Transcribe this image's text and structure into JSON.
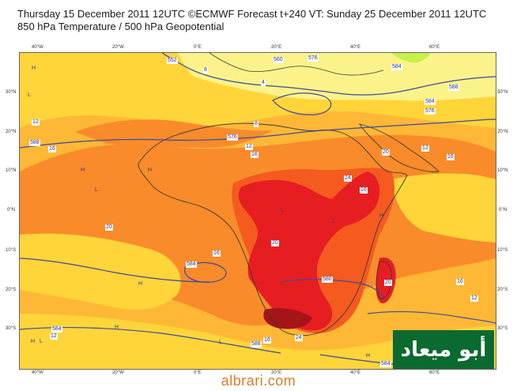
{
  "header": {
    "line1": "Thursday 15 December 2011 12UTC ©ECMWF Forecast t+240 VT: Sunday 25 December 2011 12UTC",
    "line2": "850 hPa Temperature / 500 hPa Geopotential"
  },
  "map": {
    "latitudes_left": [
      "30°N",
      "20°N",
      "10°N",
      "0°N",
      "10°S",
      "20°S",
      "30°S"
    ],
    "latitudes_right": [
      "30°N",
      "20°N",
      "10°N",
      "0°N",
      "10°S",
      "20°S",
      "30°S"
    ],
    "longitudes_top": [
      "40°W",
      "20°W",
      "0°E",
      "20°E",
      "40°E",
      "60°E"
    ],
    "longitudes_bottom": [
      "40°W",
      "20°W",
      "0°E",
      "20°E",
      "40°E",
      "60°E"
    ],
    "geopotential_labels": [
      "552",
      "560",
      "576",
      "584",
      "588",
      "584",
      "588",
      "576",
      "584",
      "580",
      "584",
      "588",
      "576",
      "584"
    ],
    "temperature_labels": [
      "8",
      "4",
      "8",
      "12",
      "16",
      "12",
      "16",
      "12",
      "16",
      "20",
      "24",
      "16",
      "20",
      "16",
      "20",
      "24",
      "12",
      "16",
      "12",
      "16",
      "20"
    ],
    "pressure_markers": [
      "H",
      "L",
      "H",
      "L",
      "H",
      "H",
      "L",
      "H",
      "L",
      "H",
      "L",
      "H",
      "H",
      "L"
    ],
    "colors": {
      "very_cold": "#c7f04a",
      "cool": "#fbf38a",
      "mild": "#ffd53a",
      "warm": "#ffb836",
      "hot": "#f98b2a",
      "very_hot": "#f55a1f",
      "extreme": "#e61e22",
      "extreme_dark": "#a51518",
      "contour": "#3f4b9a",
      "coast": "#3a3a3a"
    }
  },
  "badge": {
    "text": "أبو ميعاد"
  },
  "watermark": {
    "text": "albrari.com"
  }
}
